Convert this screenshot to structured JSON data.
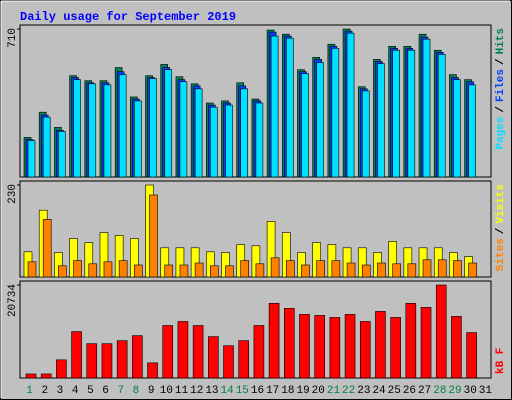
{
  "title": "Daily usage for September 2019",
  "legend_separator": "/",
  "highlight_color": "#008040",
  "highlight_categories": [
    "1",
    "7",
    "8",
    "14",
    "15",
    "21",
    "22",
    "28",
    "29"
  ],
  "chart_data": [
    {
      "type": "bar",
      "ylim": [
        0,
        710
      ],
      "yticks": [
        710
      ],
      "series": [
        {
          "name": "Pages",
          "color": "#00e0ff",
          "values": [
            175,
            287,
            219,
            467,
            447,
            442,
            491,
            365,
            472,
            515,
            457,
            423,
            335,
            345,
            423,
            355,
            676,
            666,
            496,
            549,
            617,
            690,
            413,
            544,
            608,
            608,
            661,
            588,
            467,
            442,
            null
          ]
        },
        {
          "name": "Files",
          "color": "#0040ff",
          "values": [
            180,
            297,
            224,
            477,
            452,
            452,
            505,
            374,
            477,
            525,
            467,
            437,
            345,
            355,
            437,
            365,
            695,
            676,
            505,
            564,
            627,
            700,
            423,
            554,
            617,
            617,
            671,
            598,
            477,
            457,
            null
          ]
        },
        {
          "name": "Hits",
          "color": "#00805c",
          "values": [
            190,
            311,
            238,
            486,
            462,
            462,
            525,
            384,
            486,
            540,
            481,
            447,
            355,
            365,
            452,
            374,
            705,
            685,
            515,
            574,
            637,
            710,
            433,
            564,
            627,
            627,
            685,
            608,
            491,
            467,
            null
          ]
        }
      ]
    },
    {
      "type": "bar",
      "ylim": [
        0,
        230
      ],
      "yticks": [
        230
      ],
      "series": [
        {
          "name": "Sites",
          "color": "#ff8000",
          "values": [
            38,
            144,
            28,
            41,
            33,
            38,
            41,
            30,
            205,
            30,
            30,
            35,
            28,
            28,
            41,
            33,
            48,
            41,
            30,
            41,
            41,
            35,
            30,
            35,
            33,
            33,
            43,
            43,
            41,
            35,
            null
          ]
        },
        {
          "name": "Visits",
          "color": "#ffff00",
          "values": [
            63,
            167,
            61,
            96,
            86,
            111,
            104,
            96,
            230,
            73,
            73,
            73,
            63,
            61,
            81,
            78,
            139,
            111,
            61,
            86,
            81,
            73,
            73,
            61,
            89,
            73,
            73,
            73,
            61,
            51,
            null
          ]
        }
      ]
    },
    {
      "type": "bar",
      "ylim": [
        0,
        20734
      ],
      "yticks": [
        20734
      ],
      "categories": [
        "1",
        "2",
        "3",
        "4",
        "5",
        "6",
        "7",
        "8",
        "9",
        "10",
        "11",
        "12",
        "13",
        "14",
        "15",
        "16",
        "17",
        "18",
        "19",
        "20",
        "21",
        "22",
        "23",
        "24",
        "25",
        "26",
        "27",
        "28",
        "29",
        "30",
        "31"
      ],
      "series": [
        {
          "name": "kB F",
          "color": "#ff0000",
          "values": [
            900,
            900,
            4050,
            10350,
            7650,
            7650,
            8330,
            9450,
            3380,
            11700,
            12600,
            11700,
            9230,
            7200,
            8330,
            11700,
            16650,
            15530,
            14180,
            13950,
            13500,
            14180,
            12600,
            14850,
            13500,
            16650,
            15750,
            20734,
            13730,
            10130,
            null
          ]
        }
      ]
    }
  ]
}
